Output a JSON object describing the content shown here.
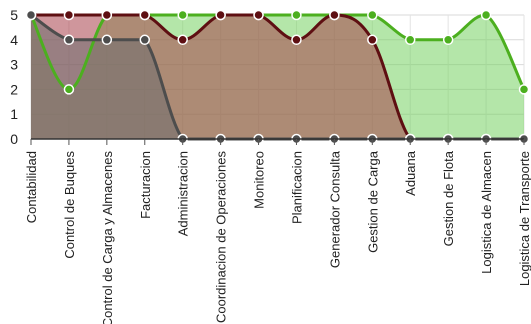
{
  "chart_data": {
    "type": "area",
    "categories": [
      "Contabilidad",
      "Control de Buques",
      "Control de Carga y Almacenes",
      "Facturacion",
      "Administracion",
      "Coordinacion de Operaciones",
      "Monitoreo",
      "Planificacion",
      "Generador Consulta",
      "Gestion de Carga",
      "Aduana",
      "Gestion de Flota",
      "Logistica de Almacen",
      "Logistica de Transporte"
    ],
    "ylim": [
      0,
      5
    ],
    "yticks": [
      0,
      1,
      2,
      3,
      4,
      5
    ],
    "grid": true,
    "legend": "none",
    "series": [
      {
        "color": "#4caf1f",
        "fill": "#77d163",
        "values": [
          5,
          2,
          5,
          5,
          5,
          5,
          5,
          5,
          5,
          5,
          4,
          4,
          5,
          2
        ]
      },
      {
        "color": "#5e0f12",
        "fill": "#a8404a",
        "values": [
          5,
          5,
          5,
          5,
          4,
          5,
          5,
          4,
          5,
          4,
          0,
          0,
          0,
          0
        ]
      },
      {
        "color": "#4d4d4d",
        "fill": "#6d6d6d",
        "values": [
          5,
          4,
          4,
          4,
          0,
          0,
          0,
          0,
          0,
          0,
          0,
          0,
          0,
          0
        ]
      }
    ]
  }
}
